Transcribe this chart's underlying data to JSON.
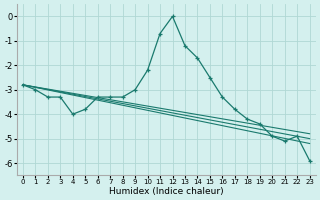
{
  "xlabel": "Humidex (Indice chaleur)",
  "ylabel": "",
  "bg_color": "#d4f0ee",
  "grid_color": "#b0d8d4",
  "line_color": "#1a7a6e",
  "xlim": [
    -0.5,
    23.5
  ],
  "ylim": [
    -6.5,
    0.5
  ],
  "yticks": [
    0,
    -1,
    -2,
    -3,
    -4,
    -5,
    -6
  ],
  "xticks": [
    0,
    1,
    2,
    3,
    4,
    5,
    6,
    7,
    8,
    9,
    10,
    11,
    12,
    13,
    14,
    15,
    16,
    17,
    18,
    19,
    20,
    21,
    22,
    23
  ],
  "series_x": [
    0,
    1,
    2,
    3,
    4,
    5,
    6,
    7,
    8,
    9,
    10,
    11,
    12,
    13,
    14,
    15,
    16,
    17,
    18,
    19,
    20,
    21,
    22,
    23
  ],
  "series_y": [
    -2.8,
    -3.0,
    -3.3,
    -3.3,
    -4.0,
    -3.8,
    -3.3,
    -3.3,
    -3.3,
    -3.0,
    -2.2,
    -0.7,
    0.0,
    -1.2,
    -1.7,
    -2.5,
    -3.3,
    -3.8,
    -4.2,
    -4.4,
    -4.9,
    -5.1,
    -4.9,
    -5.9
  ],
  "trend_lines": [
    {
      "x": [
        0,
        23
      ],
      "y": [
        -2.8,
        -4.8
      ]
    },
    {
      "x": [
        0,
        23
      ],
      "y": [
        -2.8,
        -5.0
      ]
    },
    {
      "x": [
        0,
        23
      ],
      "y": [
        -2.8,
        -5.2
      ]
    }
  ]
}
